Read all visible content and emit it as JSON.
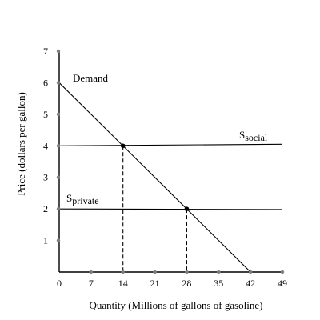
{
  "chart_data": {
    "type": "line",
    "title": "",
    "xlabel": "Quantity (Millions of gallons of gasoline)",
    "ylabel": "Price (dollars per gallon)",
    "xlim": [
      0,
      49
    ],
    "ylim": [
      0,
      7
    ],
    "xticks": [
      0,
      7,
      14,
      21,
      28,
      35,
      42,
      49
    ],
    "yticks": [
      1,
      2,
      3,
      4,
      5,
      6,
      7
    ],
    "x_tick_labels": [
      "0",
      "7",
      "14",
      "21",
      "28",
      "35",
      "42",
      "49"
    ],
    "y_tick_labels": [
      "1",
      "2",
      "3",
      "4",
      "5",
      "6",
      "7"
    ],
    "series": [
      {
        "name": "Demand",
        "x": [
          0,
          42
        ],
        "y": [
          6,
          0
        ]
      },
      {
        "name": "Ssocial",
        "label_main": "S",
        "label_sub": "social",
        "x": [
          0,
          49
        ],
        "y": [
          4,
          4.05
        ]
      },
      {
        "name": "Sprivate",
        "label_main": "S",
        "label_sub": "private",
        "x": [
          0,
          49
        ],
        "y": [
          2,
          1.98
        ]
      }
    ],
    "points": [
      {
        "x": 14,
        "y": 4
      },
      {
        "x": 28,
        "y": 2
      }
    ],
    "dashed_guides": [
      {
        "x": 14,
        "y": 4
      },
      {
        "x": 28,
        "y": 2
      }
    ],
    "grid": false,
    "legend": "none"
  }
}
